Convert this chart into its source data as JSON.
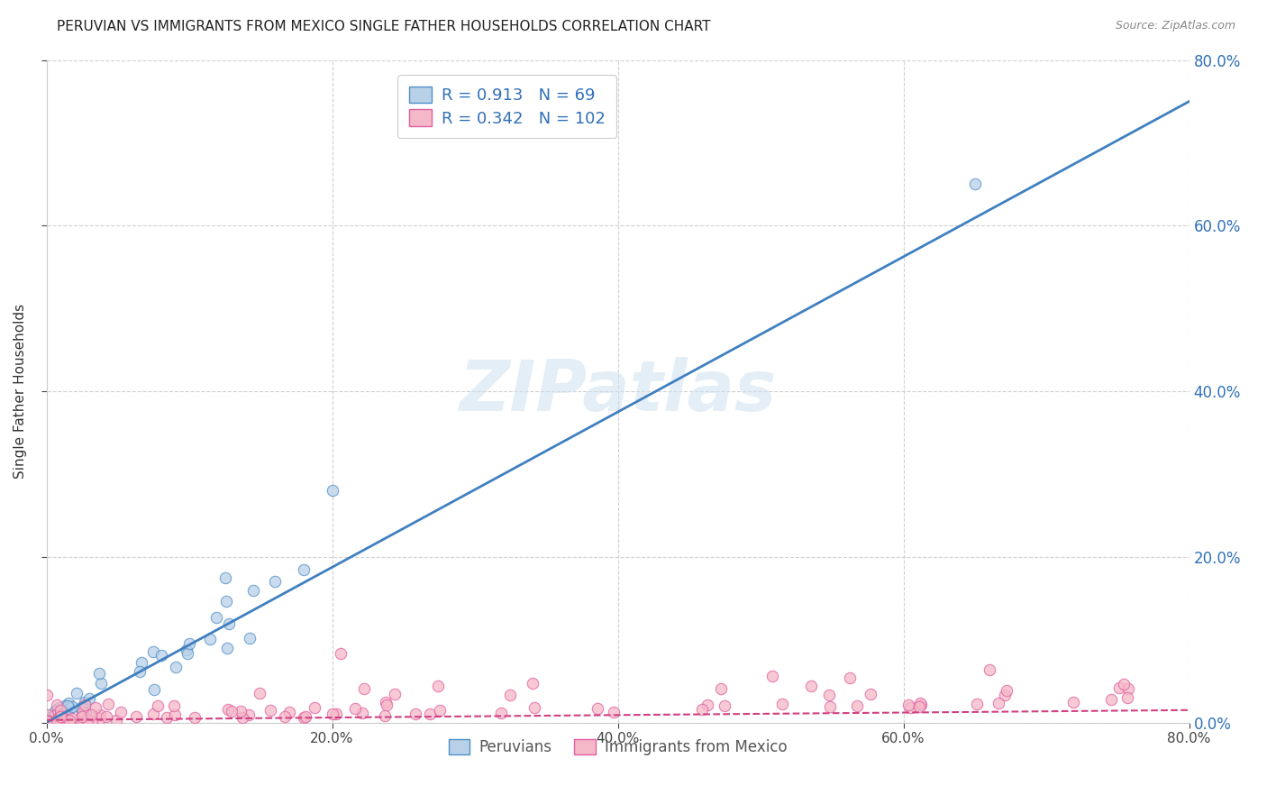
{
  "title": "PERUVIAN VS IMMIGRANTS FROM MEXICO SINGLE FATHER HOUSEHOLDS CORRELATION CHART",
  "source": "Source: ZipAtlas.com",
  "ylabel": "Single Father Households",
  "xlim": [
    0.0,
    0.8
  ],
  "ylim": [
    0.0,
    0.8
  ],
  "right_ytick_vals": [
    0.0,
    0.2,
    0.4,
    0.6,
    0.8
  ],
  "watermark": "ZIPatlas",
  "blue_R": 0.913,
  "blue_N": 69,
  "pink_R": 0.342,
  "pink_N": 102,
  "blue_fill_color": "#b8d0e8",
  "pink_fill_color": "#f5b8c8",
  "blue_edge_color": "#5090c8",
  "pink_edge_color": "#e060a0",
  "blue_line_color": "#4080c0",
  "pink_line_color": "#d04080",
  "legend_text_color": "#3070b8",
  "right_tick_color": "#3070b8",
  "title_color": "#222222",
  "source_color": "#888888",
  "watermark_color": "#cce0f0"
}
